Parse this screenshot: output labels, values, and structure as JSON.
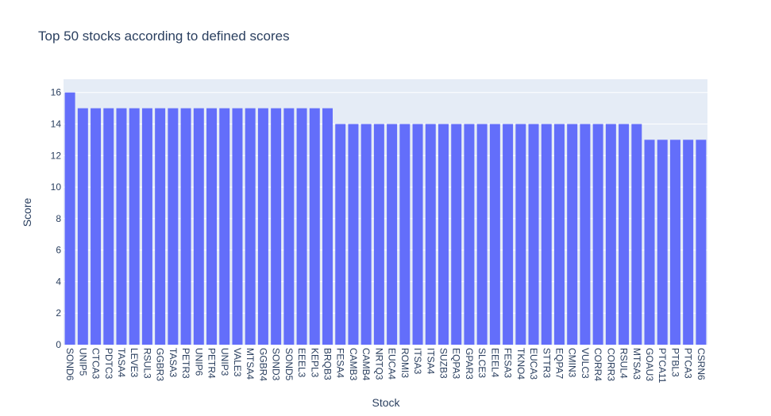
{
  "chart_data": {
    "type": "bar",
    "title": "Top 50 stocks according to defined scores",
    "xlabel": "Stock",
    "ylabel": "Score",
    "ylim": [
      0,
      16.84
    ],
    "yticks": [
      0,
      2,
      4,
      6,
      8,
      10,
      12,
      14,
      16
    ],
    "grid": true,
    "bar_color": "#636efa",
    "plot_background": "#e5ecf6",
    "categories": [
      "SOND6",
      "UNIP5",
      "CTCA3",
      "PDTC3",
      "TASA4",
      "LEVE3",
      "RSUL3",
      "GGBR3",
      "TASA3",
      "PETR3",
      "UNIP6",
      "PETR4",
      "UNIP3",
      "VALE3",
      "MTSA4",
      "GGBR4",
      "SOND3",
      "SOND5",
      "EEEL3",
      "KEPL3",
      "BRQB3",
      "FESA4",
      "CAMB3",
      "CAMB4",
      "NRTQ3",
      "EUCA4",
      "ROMI3",
      "ITSA3",
      "ITSA4",
      "SUZB3",
      "EQPA3",
      "GPAR3",
      "SLCE3",
      "EEEL4",
      "FESA3",
      "TKNO4",
      "EUCA3",
      "STTR3",
      "EQPA7",
      "CMIN3",
      "VULC3",
      "CORR4",
      "CORR3",
      "RSUL4",
      "MTSA3",
      "GOAU3",
      "PTCA11",
      "PTBL3",
      "PTCA3",
      "CSRN6"
    ],
    "values": [
      16,
      15,
      15,
      15,
      15,
      15,
      15,
      15,
      15,
      15,
      15,
      15,
      15,
      15,
      15,
      15,
      15,
      15,
      15,
      15,
      15,
      14,
      14,
      14,
      14,
      14,
      14,
      14,
      14,
      14,
      14,
      14,
      14,
      14,
      14,
      14,
      14,
      14,
      14,
      14,
      14,
      14,
      14,
      14,
      14,
      13,
      13,
      13,
      13,
      13
    ]
  }
}
